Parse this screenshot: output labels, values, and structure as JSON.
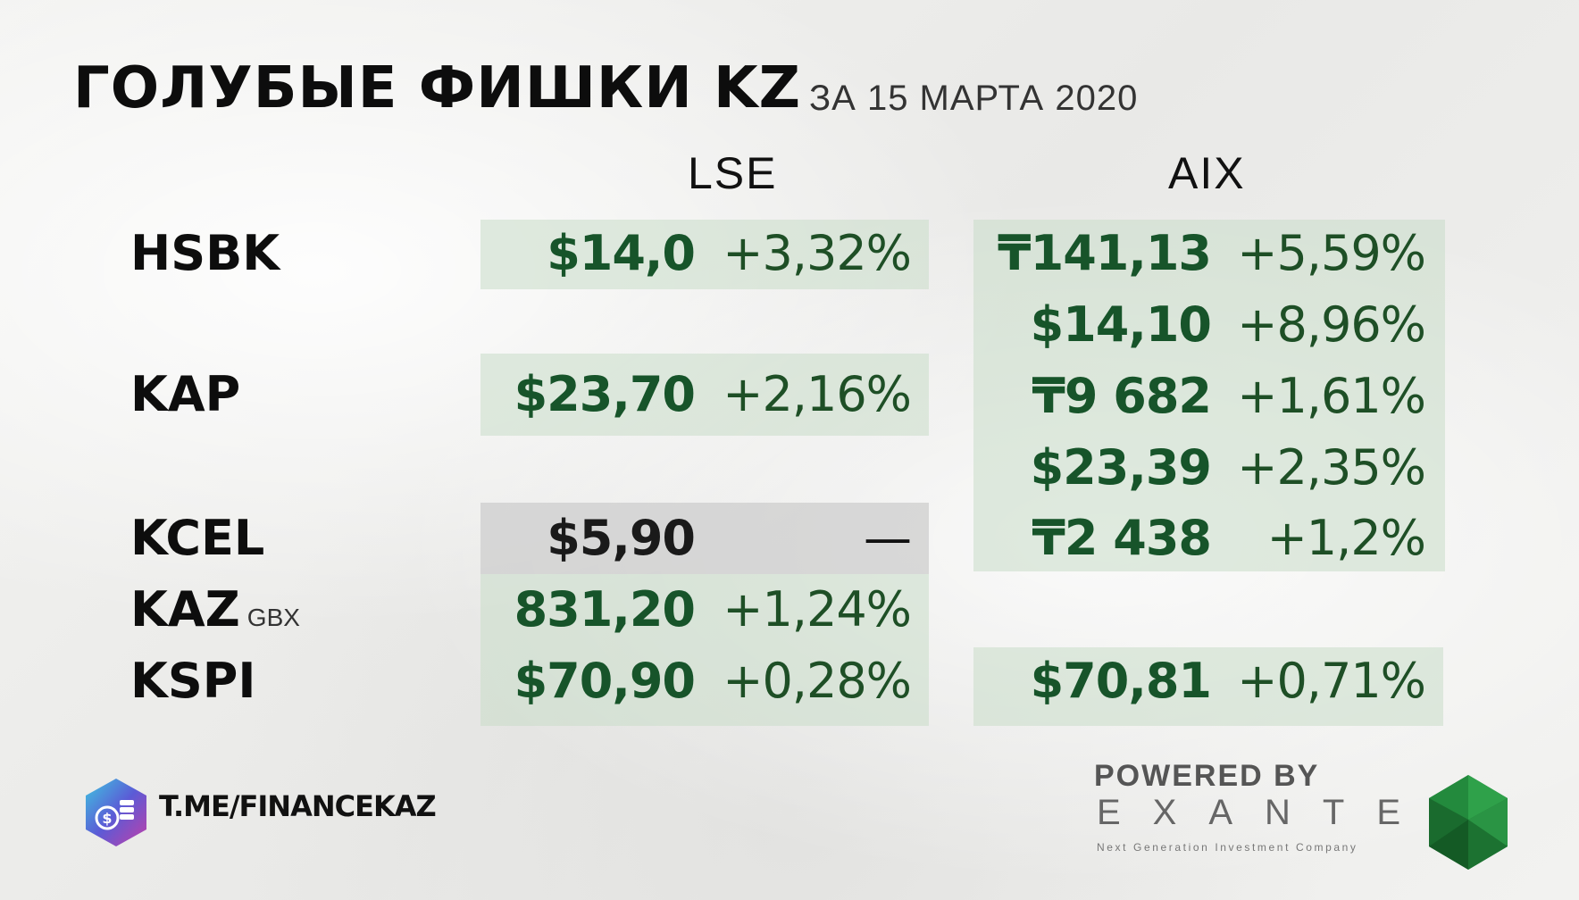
{
  "title": "ГОЛУБЫЕ ФИШКИ KZ",
  "subtitle": "ЗА 15 МАРТА 2020",
  "columns": {
    "lse": "LSE",
    "aix": "AIX"
  },
  "tickers": {
    "hsbk": "HSBK",
    "kap": "KAP",
    "kcel": "KCEL",
    "kaz": "KAZ",
    "kaz_unit": "GBX",
    "kspi": "KSPI"
  },
  "lse": {
    "hsbk": {
      "price": "$14,0",
      "change": "+3,32%"
    },
    "kap": {
      "price": "$23,70",
      "change": "+2,16%"
    },
    "kcel": {
      "price": "$5,90",
      "change": "—"
    },
    "kaz": {
      "price": "831,20",
      "change": "+1,24%"
    },
    "kspi": {
      "price": "$70,90",
      "change": "+0,28%"
    }
  },
  "aix": {
    "hsbk_kzt": {
      "price": "₸141,13",
      "change": "+5,59%"
    },
    "hsbk_usd": {
      "price": "$14,10",
      "change": "+8,96%"
    },
    "kap_kzt": {
      "price": "₸9 682",
      "change": "+1,61%"
    },
    "kap_usd": {
      "price": "$23,39",
      "change": "+2,35%"
    },
    "kcel_kzt": {
      "price": "₸2 438",
      "change": "+1,2%"
    },
    "kspi_usd": {
      "price": "$70,81",
      "change": "+0,71%"
    }
  },
  "footer": {
    "telegram": "T.ME/FINANCEKAZ",
    "powered_by": "POWERED BY",
    "brand": "EXANTE",
    "brand_tagline": "Next Generation Investment Company"
  },
  "colors": {
    "positive_text": "#17542a",
    "panel_green": "#c8dcc8",
    "panel_grey": "#cdcdcd"
  }
}
